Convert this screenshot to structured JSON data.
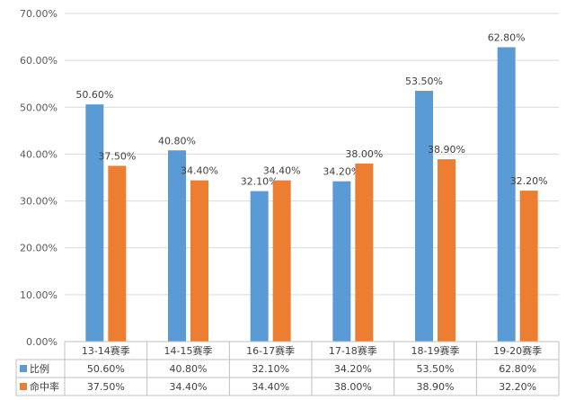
{
  "chart_data": {
    "type": "bar",
    "categories": [
      "13-14赛季",
      "14-15赛季",
      "16-17赛季",
      "17-18赛季",
      "18-19赛季",
      "19-20赛季"
    ],
    "series": [
      {
        "name": "比例",
        "values": [
          50.6,
          40.8,
          32.1,
          34.2,
          53.5,
          62.8
        ],
        "labels": [
          "50.60%",
          "40.80%",
          "32.10%",
          "34.20%",
          "53.50%",
          "62.80%"
        ],
        "color": "#5B9BD5"
      },
      {
        "name": "命中率",
        "values": [
          37.5,
          34.4,
          34.4,
          38.0,
          38.9,
          32.2
        ],
        "labels": [
          "37.50%",
          "34.40%",
          "34.40%",
          "38.00%",
          "38.90%",
          "32.20%"
        ],
        "color": "#ED7D31"
      }
    ],
    "yticks": [
      "0.00%",
      "10.00%",
      "20.00%",
      "30.00%",
      "40.00%",
      "50.00%",
      "60.00%",
      "70.00%"
    ],
    "ylim": [
      0,
      70
    ],
    "grid": true,
    "legend": "data-table",
    "title": "",
    "xlabel": "",
    "ylabel": ""
  }
}
